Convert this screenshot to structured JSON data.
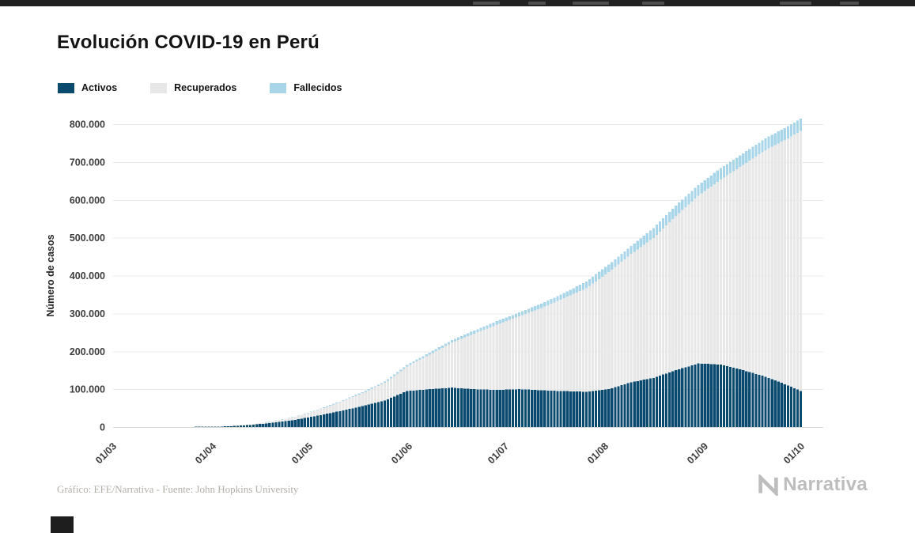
{
  "page": {
    "title": "Evolución COVID-19 en Perú",
    "footer_credit": "Gráfico: EFE/Narrativa - Fuente: John Hopkins University",
    "brand": "Narrativa"
  },
  "legend": [
    {
      "label": "Activos",
      "color": "#0b4a6f"
    },
    {
      "label": "Recuperados",
      "color": "#e7e7e7"
    },
    {
      "label": "Fallecidos",
      "color": "#a9d5e8"
    }
  ],
  "chart_data": {
    "type": "bar",
    "stacked": true,
    "title": "Evolución COVID-19 en Perú",
    "xlabel": "",
    "ylabel": "Número de casos",
    "ylim": [
      0,
      800000
    ],
    "grid": "horizontal",
    "legend_position": "top-left",
    "y_ticks": [
      {
        "value": 0,
        "label": "0"
      },
      {
        "value": 100000,
        "label": "100.000"
      },
      {
        "value": 200000,
        "label": "200.000"
      },
      {
        "value": 300000,
        "label": "300.000"
      },
      {
        "value": 400000,
        "label": "400.000"
      },
      {
        "value": 500000,
        "label": "500.000"
      },
      {
        "value": 600000,
        "label": "600.000"
      },
      {
        "value": 700000,
        "label": "700.000"
      },
      {
        "value": 800000,
        "label": "800.000"
      }
    ],
    "x_ticks": [
      {
        "day": 0,
        "label": "01/03"
      },
      {
        "day": 31,
        "label": "01/04"
      },
      {
        "day": 61,
        "label": "01/05"
      },
      {
        "day": 92,
        "label": "01/06"
      },
      {
        "day": 122,
        "label": "01/07"
      },
      {
        "day": 153,
        "label": "01/08"
      },
      {
        "day": 184,
        "label": "01/09"
      },
      {
        "day": 214,
        "label": "01/10"
      }
    ],
    "x_max_day": 214,
    "x_days": [
      0,
      7,
      14,
      21,
      28,
      35,
      42,
      49,
      56,
      63,
      70,
      77,
      84,
      91,
      98,
      105,
      112,
      119,
      126,
      133,
      140,
      147,
      154,
      161,
      168,
      175,
      182,
      189,
      196,
      203,
      210,
      214
    ],
    "series_order_bottom_to_top": [
      "Activos",
      "Recuperados",
      "Fallecidos"
    ],
    "series": [
      {
        "name": "Activos",
        "color": "#0b4a6f",
        "values": [
          0,
          6,
          40,
          340,
          760,
          1800,
          5500,
          11000,
          19000,
          30000,
          42000,
          55000,
          70000,
          95000,
          100000,
          104000,
          100000,
          98000,
          100000,
          97000,
          95000,
          93000,
          100000,
          118000,
          130000,
          150000,
          168000,
          165000,
          150000,
          133000,
          110000,
          95000
        ]
      },
      {
        "name": "Recuperados",
        "color": "#e7e7e7",
        "values": [
          0,
          0,
          3,
          18,
          74,
          398,
          1838,
          4228,
          7789,
          14642,
          23418,
          34625,
          46503,
          64970,
          91050,
          119048,
          146891,
          172102,
          192129,
          217377,
          245403,
          273568,
          309039,
          338952,
          369728,
          407783,
          442828,
          489015,
          542306,
          598496,
          652547,
          687294
        ]
      },
      {
        "name": "Fallecidos",
        "color": "#a9d5e8",
        "values": [
          0,
          0,
          0,
          5,
          18,
          83,
          181,
          400,
          728,
          1286,
          1889,
          2648,
          3456,
          4506,
          5465,
          6688,
          8045,
          9317,
          10589,
          11870,
          13187,
          18229,
          19811,
          21072,
          26075,
          27453,
          28607,
          29687,
          30526,
          31369,
          32037,
          32535
        ]
      }
    ]
  }
}
